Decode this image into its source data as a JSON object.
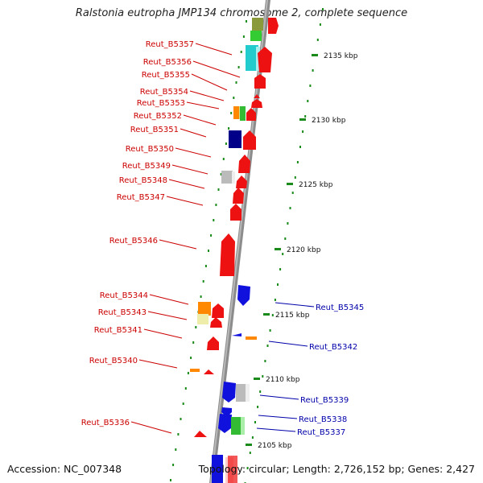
{
  "title": "Ralstonia eutropha JMP134 chromosome 2, complete sequence",
  "footer": {
    "accession": "Accession: NC_007348",
    "summary": "Topology: circular; Length: 2,726,152 bp; Genes: 2,427"
  },
  "colors": {
    "forward_label": "#cc0000",
    "reverse_label": "#0000aa",
    "tick": "#1a8a1a",
    "backbone": "#8c8c8c"
  },
  "kbp_ticks": [
    "2135 kbp",
    "2130 kbp",
    "2125 kbp",
    "2120 kbp",
    "2115 kbp",
    "2110 kbp",
    "2105 kbp"
  ],
  "genes_left": [
    "Reut_B5357",
    "Reut_B5356",
    "Reut_B5355",
    "Reut_B5354",
    "Reut_B5353",
    "Reut_B5352",
    "Reut_B5351",
    "Reut_B5350",
    "Reut_B5349",
    "Reut_B5348",
    "Reut_B5347",
    "Reut_B5346",
    "Reut_B5344",
    "Reut_B5343",
    "Reut_B5341",
    "Reut_B5340",
    "Reut_B5336"
  ],
  "genes_right": [
    "Reut_B5345",
    "Reut_B5342",
    "Reut_B5339",
    "Reut_B5338",
    "Reut_B5337"
  ]
}
